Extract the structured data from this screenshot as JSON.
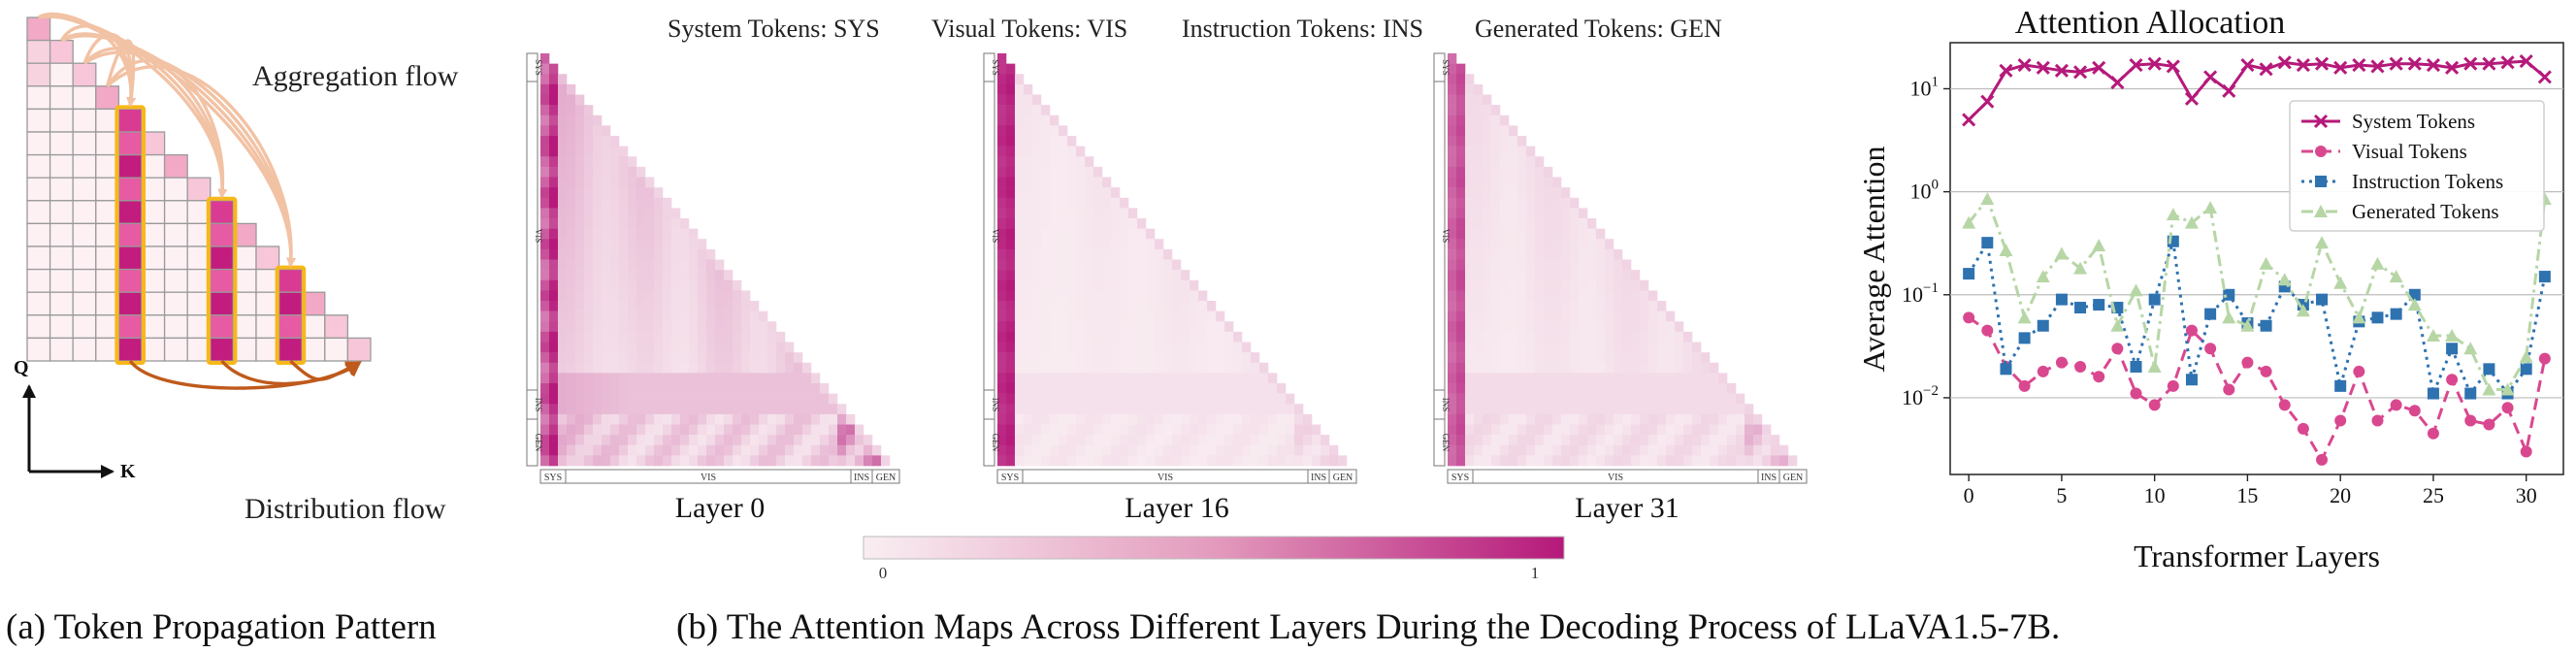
{
  "panel_a": {
    "axis_q": "Q",
    "axis_k": "K",
    "aggregation_label": "Aggregation flow",
    "distribution_label": "Distribution flow",
    "caption": "(a) Token Propagation Pattern"
  },
  "panel_b": {
    "legend": [
      "System Tokens: SYS",
      "Visual Tokens: VIS",
      "Instruction Tokens: INS",
      "Generated Tokens: GEN"
    ],
    "maps": [
      {
        "layer_label": "Layer 0"
      },
      {
        "layer_label": "Layer 16"
      },
      {
        "layer_label": "Layer 31"
      }
    ],
    "segment_labels": [
      "SYS",
      "VIS",
      "INS",
      "GEN"
    ],
    "colorbar": {
      "min_label": "0",
      "max_label": "1"
    },
    "caption": "(b) The Attention Maps Across Different Layers During the Decoding Process of LLaVA1.5-7B."
  },
  "colors": {
    "magenta": "#b5197a",
    "pink": "#d9488f",
    "blue": "#2e72b0",
    "green": "#b7d6a6",
    "orange_flow": "#f2c2a4",
    "brown_flow": "#bf5a1c",
    "highlight": "#f6b81a",
    "pale": "#f7e6ec"
  },
  "chart_data": {
    "type": "line",
    "title": "Attention Allocation",
    "xlabel": "Transformer Layers",
    "ylabel": "Average Attention",
    "yscale": "log",
    "ylim": [
      0.0018,
      28
    ],
    "xlim": [
      -1,
      32
    ],
    "xticks": [
      0,
      5,
      10,
      15,
      20,
      25,
      30
    ],
    "yticks": [
      {
        "value": 10,
        "base": "10",
        "exp": "1"
      },
      {
        "value": 1,
        "base": "10",
        "exp": "0"
      },
      {
        "value": 0.1,
        "base": "10",
        "exp": "−1"
      },
      {
        "value": 0.01,
        "base": "10",
        "exp": "−2"
      }
    ],
    "grid": true,
    "legend_position": "top-right",
    "x": [
      0,
      1,
      2,
      3,
      4,
      5,
      6,
      7,
      8,
      9,
      10,
      11,
      12,
      13,
      14,
      15,
      16,
      17,
      18,
      19,
      20,
      21,
      22,
      23,
      24,
      25,
      26,
      27,
      28,
      29,
      30,
      31
    ],
    "series": [
      {
        "name": "System Tokens",
        "color": "#b5197a",
        "marker": "x",
        "dash": "solid",
        "values": [
          5,
          7.5,
          15,
          17,
          16,
          15,
          14.5,
          16,
          11.5,
          17,
          17.5,
          16.5,
          8,
          13,
          9.5,
          17,
          15.5,
          18,
          17,
          17.5,
          16,
          17,
          16.5,
          17.5,
          17.5,
          17,
          16,
          17.5,
          17.5,
          18,
          18.5,
          13
        ]
      },
      {
        "name": "Visual Tokens",
        "color": "#d9488f",
        "marker": "circle",
        "dash": "dashed",
        "values": [
          0.06,
          0.045,
          0.02,
          0.013,
          0.018,
          0.022,
          0.02,
          0.016,
          0.03,
          0.011,
          0.0085,
          0.013,
          0.045,
          0.03,
          0.012,
          0.022,
          0.018,
          0.0085,
          0.005,
          0.0025,
          0.006,
          0.018,
          0.006,
          0.0085,
          0.0075,
          0.0045,
          0.015,
          0.006,
          0.0055,
          0.008,
          0.003,
          0.024
        ]
      },
      {
        "name": "Instruction Tokens",
        "color": "#2e72b0",
        "marker": "square",
        "dash": "dotted",
        "values": [
          0.16,
          0.32,
          0.019,
          0.038,
          0.05,
          0.09,
          0.075,
          0.08,
          0.075,
          0.02,
          0.09,
          0.33,
          0.015,
          0.065,
          0.1,
          0.053,
          0.05,
          0.12,
          0.08,
          0.09,
          0.013,
          0.055,
          0.06,
          0.065,
          0.1,
          0.011,
          0.03,
          0.011,
          0.019,
          0.011,
          0.019,
          0.15
        ]
      },
      {
        "name": "Generated Tokens",
        "color": "#b7d6a6",
        "marker": "triangle",
        "dash": "dashdot",
        "values": [
          0.5,
          0.85,
          0.27,
          0.06,
          0.15,
          0.25,
          0.18,
          0.3,
          0.05,
          0.11,
          0.02,
          0.6,
          0.5,
          0.7,
          0.06,
          0.05,
          0.2,
          0.14,
          0.07,
          0.32,
          0.13,
          0.06,
          0.2,
          0.15,
          0.08,
          0.04,
          0.04,
          0.03,
          0.012,
          0.012,
          0.025,
          0.85
        ]
      }
    ]
  }
}
